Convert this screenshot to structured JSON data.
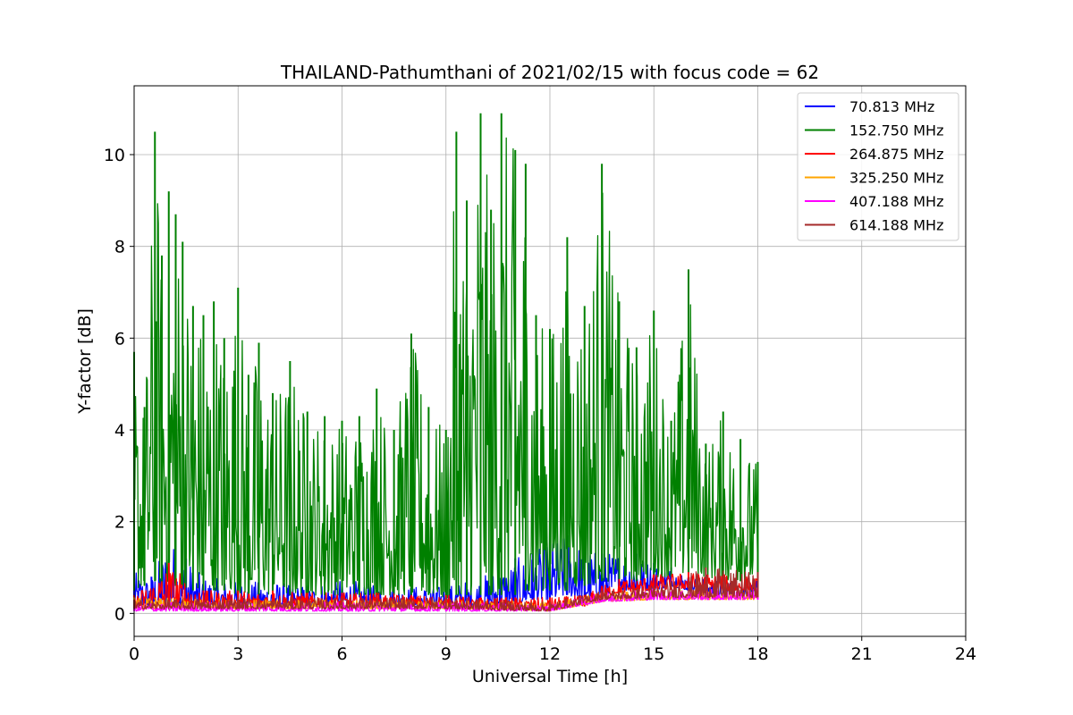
{
  "chart_data": {
    "type": "line",
    "title": "THAILAND-Pathumthani of 2021/02/15 with focus code = 62",
    "xlabel": "Universal Time [h]",
    "ylabel": "Y-factor [dB]",
    "xlim": [
      0,
      24
    ],
    "ylim": [
      -0.5,
      11.5
    ],
    "xticks": [
      0,
      3,
      6,
      9,
      12,
      15,
      18,
      21,
      24
    ],
    "yticks": [
      0,
      2,
      4,
      6,
      8,
      10
    ],
    "grid": true,
    "legend_position": "top-right",
    "series": [
      {
        "name": " 70.813 MHz",
        "color": "#0000ff",
        "x": [
          0,
          0.5,
          1,
          1.5,
          2,
          3,
          4,
          5,
          6,
          7,
          8,
          9,
          10,
          11,
          11.5,
          12,
          12.5,
          13,
          13.5,
          14,
          14.5,
          15,
          15.5,
          16,
          17,
          18
        ],
        "y_low": [
          0.2,
          0.15,
          0.15,
          0.15,
          0.15,
          0.15,
          0.15,
          0.15,
          0.15,
          0.15,
          0.15,
          0.15,
          0.15,
          0.2,
          0.3,
          0.3,
          0.4,
          0.3,
          0.4,
          0.5,
          0.5,
          0.5,
          0.6,
          0.5,
          0.4,
          0.4
        ],
        "y_high": [
          0.9,
          0.8,
          1.7,
          1.2,
          0.8,
          0.7,
          0.7,
          0.6,
          0.8,
          0.6,
          0.6,
          0.6,
          0.8,
          1.2,
          1.3,
          1.6,
          1.7,
          1.5,
          1.3,
          1.4,
          1.3,
          1.1,
          1.0,
          0.9,
          0.7,
          0.7
        ]
      },
      {
        "name": "152.750 MHz",
        "color": "#008000",
        "x": [
          0,
          0.3,
          0.6,
          0.8,
          1,
          1.2,
          1.4,
          1.7,
          2,
          2.3,
          2.6,
          3,
          3.3,
          3.6,
          4,
          4.5,
          5,
          5.5,
          6,
          6.5,
          7,
          7.5,
          8,
          8.5,
          9,
          9.3,
          9.6,
          10,
          10.3,
          10.6,
          11,
          11.3,
          11.6,
          12,
          12.5,
          13,
          13.5,
          14,
          14.5,
          15,
          15.5,
          16,
          16.5,
          17,
          17.5,
          18
        ],
        "y_low": [
          0.5,
          0.6,
          0.7,
          0.6,
          0.7,
          0.6,
          0.6,
          0.5,
          0.5,
          0.5,
          0.5,
          0.4,
          0.4,
          0.4,
          0.4,
          0.4,
          0.4,
          0.4,
          0.4,
          0.4,
          0.4,
          0.4,
          0.4,
          0.4,
          0.3,
          0.4,
          0.4,
          0.4,
          0.4,
          0.4,
          0.4,
          0.5,
          0.5,
          0.5,
          0.5,
          0.6,
          0.7,
          0.7,
          0.7,
          0.8,
          0.8,
          0.8,
          0.8,
          0.7,
          0.7,
          0.7
        ],
        "y_high": [
          5.7,
          4.5,
          10.5,
          7.8,
          9.2,
          8.7,
          8.1,
          6.7,
          6.5,
          6.8,
          6.0,
          7.1,
          5.2,
          5.9,
          4.8,
          5.5,
          4.4,
          4.3,
          4.2,
          4.3,
          4.9,
          4.0,
          6.1,
          4.5,
          4.0,
          10.5,
          9.0,
          10.9,
          8.8,
          10.9,
          10.1,
          9.8,
          6.5,
          6.2,
          8.2,
          6.7,
          9.8,
          6.8,
          5.8,
          6.6,
          4.2,
          7.5,
          3.7,
          4.4,
          3.8,
          3.3
        ]
      },
      {
        "name": "264.875 MHz",
        "color": "#ff0000",
        "x": [
          0,
          1,
          2,
          3,
          4,
          5,
          6,
          7,
          8,
          9,
          10,
          11,
          12,
          13,
          13.5,
          14,
          15,
          16,
          17,
          18
        ],
        "y_low": [
          0.15,
          0.15,
          0.15,
          0.15,
          0.15,
          0.15,
          0.15,
          0.15,
          0.15,
          0.15,
          0.1,
          0.1,
          0.1,
          0.15,
          0.35,
          0.45,
          0.5,
          0.55,
          0.5,
          0.5
        ],
        "y_high": [
          0.4,
          1.1,
          0.5,
          0.5,
          0.5,
          0.45,
          0.45,
          0.45,
          0.4,
          0.4,
          0.35,
          0.35,
          0.35,
          0.4,
          0.6,
          0.75,
          0.85,
          0.9,
          0.85,
          0.8
        ]
      },
      {
        "name": "325.250 MHz",
        "color": "#ffa500",
        "x": [
          0,
          3,
          6,
          9,
          12,
          13.5,
          15,
          18
        ],
        "y_low": [
          0.1,
          0.1,
          0.1,
          0.1,
          0.05,
          0.25,
          0.3,
          0.3
        ],
        "y_high": [
          0.35,
          0.3,
          0.3,
          0.3,
          0.25,
          0.45,
          0.5,
          0.5
        ]
      },
      {
        "name": "407.188 MHz",
        "color": "#ff00ff",
        "x": [
          0,
          3,
          6,
          9,
          12,
          13.5,
          15,
          18
        ],
        "y_low": [
          0.05,
          0.05,
          0.05,
          0.05,
          0.05,
          0.25,
          0.3,
          0.3
        ],
        "y_high": [
          0.25,
          0.25,
          0.25,
          0.25,
          0.2,
          0.45,
          0.55,
          0.55
        ]
      },
      {
        "name": "614.188 MHz",
        "color": "#a52a2a",
        "x": [
          0,
          3,
          6,
          9,
          12,
          13.5,
          15,
          16.5,
          18
        ],
        "y_low": [
          0.1,
          0.1,
          0.1,
          0.1,
          0.05,
          0.3,
          0.35,
          0.35,
          0.35
        ],
        "y_high": [
          0.3,
          0.35,
          0.35,
          0.35,
          0.25,
          0.5,
          0.6,
          1.0,
          0.9
        ]
      }
    ]
  }
}
